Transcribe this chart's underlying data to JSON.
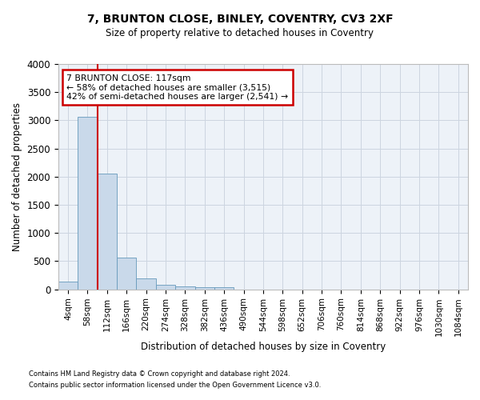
{
  "title_line1": "7, BRUNTON CLOSE, BINLEY, COVENTRY, CV3 2XF",
  "title_line2": "Size of property relative to detached houses in Coventry",
  "xlabel": "Distribution of detached houses by size in Coventry",
  "ylabel": "Number of detached properties",
  "footnote1": "Contains HM Land Registry data © Crown copyright and database right 2024.",
  "footnote2": "Contains public sector information licensed under the Open Government Licence v3.0.",
  "bar_labels": [
    "4sqm",
    "58sqm",
    "112sqm",
    "166sqm",
    "220sqm",
    "274sqm",
    "328sqm",
    "382sqm",
    "436sqm",
    "490sqm",
    "544sqm",
    "598sqm",
    "652sqm",
    "706sqm",
    "760sqm",
    "814sqm",
    "868sqm",
    "922sqm",
    "976sqm",
    "1030sqm",
    "1084sqm"
  ],
  "bar_values": [
    140,
    3060,
    2060,
    560,
    200,
    80,
    55,
    45,
    45,
    0,
    0,
    0,
    0,
    0,
    0,
    0,
    0,
    0,
    0,
    0,
    0
  ],
  "bar_color": "#c9d9ea",
  "bar_edge_color": "#6699bb",
  "grid_color": "#ccd5e0",
  "background_color": "#edf2f8",
  "ylim": [
    0,
    4000
  ],
  "yticks": [
    0,
    500,
    1000,
    1500,
    2000,
    2500,
    3000,
    3500,
    4000
  ],
  "annotation_text": "7 BRUNTON CLOSE: 117sqm\n← 58% of detached houses are smaller (3,515)\n42% of semi-detached houses are larger (2,541) →",
  "annotation_box_color": "#ffffff",
  "annotation_box_edge_color": "#cc0000",
  "vline_color": "#cc0000",
  "vline_x": 1.5
}
